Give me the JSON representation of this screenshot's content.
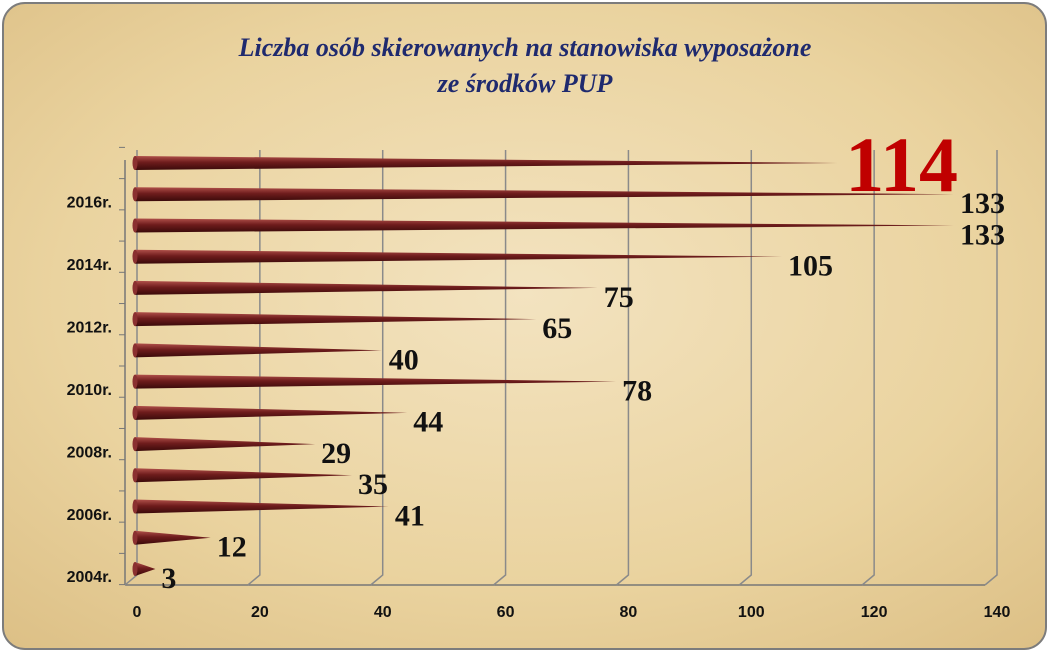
{
  "chart_data": {
    "type": "cone_bar",
    "title": [
      "Liczba osób skierowanych na stanowiska wyposażone",
      "ze środków PUP"
    ],
    "categories": [
      "2004r.",
      null,
      "2006r.",
      null,
      "2008r.",
      null,
      "2010r.",
      null,
      "2012r.",
      null,
      "2014r.",
      null,
      "2016r.",
      null
    ],
    "values": [
      3,
      12,
      41,
      35,
      29,
      44,
      78,
      40,
      65,
      75,
      105,
      133,
      133,
      114
    ],
    "color": "#6e1c1c",
    "highlight": {
      "index": 13,
      "color": "#c00000"
    },
    "xlim": [
      0,
      140
    ],
    "xticks": [
      0,
      20,
      40,
      60,
      80,
      100,
      120,
      140
    ],
    "grid": true
  }
}
